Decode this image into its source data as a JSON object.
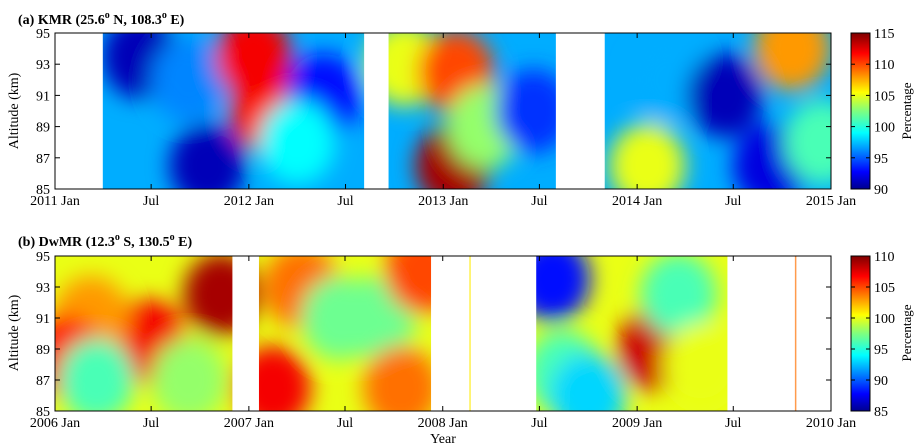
{
  "chart_data": [
    {
      "type": "heatmap",
      "panel_label": "(a)",
      "title": "(a) KMR (25.6",
      "title_sup": "o",
      "title_mid": " N, 108.3",
      "title_sup2": "o",
      "title_end": " E)",
      "xlabel": "",
      "ylabel": "Altitude (km)",
      "x_range": [
        "2011-01-01",
        "2015-01-01"
      ],
      "x_ticks": [
        {
          "date": "2011-01-01",
          "label": "2011 Jan"
        },
        {
          "date": "2011-07-01",
          "label": "Jul"
        },
        {
          "date": "2012-01-01",
          "label": "2012 Jan"
        },
        {
          "date": "2012-07-01",
          "label": "Jul"
        },
        {
          "date": "2013-01-01",
          "label": "2013 Jan"
        },
        {
          "date": "2013-07-01",
          "label": "Jul"
        },
        {
          "date": "2014-01-01",
          "label": "2014 Jan"
        },
        {
          "date": "2014-07-01",
          "label": "Jul"
        },
        {
          "date": "2015-01-01",
          "label": "2015 Jan"
        }
      ],
      "ylim": [
        85,
        95
      ],
      "y_ticks": [
        85,
        87,
        89,
        91,
        93,
        95
      ],
      "colorbar": {
        "label": "Percentage",
        "range": [
          90,
          115
        ],
        "ticks": [
          90,
          95,
          100,
          105,
          110,
          115
        ]
      },
      "data_gaps": [
        [
          "2011-01-01",
          "2011-04-01"
        ],
        [
          "2012-08-05",
          "2012-09-20"
        ],
        [
          "2013-08-01",
          "2013-11-01"
        ]
      ],
      "features": [
        {
          "date": "2011-06-10",
          "altitude": 93.5,
          "value": 91
        },
        {
          "date": "2011-10-15",
          "altitude": 86.5,
          "value": 91
        },
        {
          "date": "2011-09-10",
          "altitude": 92,
          "value": 96
        },
        {
          "date": "2012-02-05",
          "altitude": 90,
          "value": 111
        },
        {
          "date": "2012-01-10",
          "altitude": 93.5,
          "value": 112
        },
        {
          "date": "2012-05-20",
          "altitude": 91,
          "value": 93
        },
        {
          "date": "2012-04-01",
          "altitude": 88,
          "value": 99
        },
        {
          "date": "2012-10-20",
          "altitude": 93,
          "value": 105
        },
        {
          "date": "2013-01-25",
          "altitude": 92.5,
          "value": 110
        },
        {
          "date": "2013-01-20",
          "altitude": 86.5,
          "value": 114
        },
        {
          "date": "2013-03-20",
          "altitude": 89,
          "value": 103
        },
        {
          "date": "2013-06-20",
          "altitude": 90,
          "value": 94
        },
        {
          "date": "2014-01-20",
          "altitude": 86.5,
          "value": 105
        },
        {
          "date": "2014-03-01",
          "altitude": 92,
          "value": 97
        },
        {
          "date": "2014-06-15",
          "altitude": 91,
          "value": 91
        },
        {
          "date": "2014-09-10",
          "altitude": 86.5,
          "value": 92
        },
        {
          "date": "2014-10-20",
          "altitude": 94,
          "value": 108
        },
        {
          "date": "2014-12-15",
          "altitude": 88,
          "value": 101
        }
      ],
      "background_value": 97
    },
    {
      "type": "heatmap",
      "panel_label": "(b)",
      "title": "(b) DwMR (12.3",
      "title_sup": "o",
      "title_mid": " S, 130.5",
      "title_sup2": "o",
      "title_end": " E)",
      "xlabel": "Year",
      "ylabel": "Altitude (km)",
      "x_range": [
        "2006-01-01",
        "2010-01-01"
      ],
      "x_ticks": [
        {
          "date": "2006-01-01",
          "label": "2006 Jan"
        },
        {
          "date": "2006-07-01",
          "label": "Jul"
        },
        {
          "date": "2007-01-01",
          "label": "2007 Jan"
        },
        {
          "date": "2007-07-01",
          "label": "Jul"
        },
        {
          "date": "2008-01-01",
          "label": "2008 Jan"
        },
        {
          "date": "2008-07-01",
          "label": "Jul"
        },
        {
          "date": "2009-01-01",
          "label": "2009 Jan"
        },
        {
          "date": "2009-07-01",
          "label": "Jul"
        },
        {
          "date": "2010-01-01",
          "label": "2010 Jan"
        }
      ],
      "ylim": [
        85,
        95
      ],
      "y_ticks": [
        85,
        87,
        89,
        91,
        93,
        95
      ],
      "colorbar": {
        "label": "Percentage",
        "range": [
          85,
          110
        ],
        "ticks": [
          85,
          90,
          95,
          100,
          105,
          110
        ]
      },
      "data_gaps": [
        [
          "2006-12-01",
          "2007-01-20"
        ],
        [
          "2007-12-10",
          "2008-06-25"
        ],
        [
          "2009-06-20",
          "2010-01-01"
        ]
      ],
      "thin_lines": [
        {
          "date": "2008-02-20",
          "value": 101
        },
        {
          "date": "2009-10-25",
          "value": 104
        }
      ],
      "features": [
        {
          "date": "2006-06-25",
          "altitude": 89.5,
          "value": 107
        },
        {
          "date": "2006-03-10",
          "altitude": 91,
          "value": 103
        },
        {
          "date": "2006-01-20",
          "altitude": 88.5,
          "value": 106
        },
        {
          "date": "2006-11-10",
          "altitude": 92.5,
          "value": 109
        },
        {
          "date": "2006-03-20",
          "altitude": 87,
          "value": 96
        },
        {
          "date": "2006-09-10",
          "altitude": 87,
          "value": 98
        },
        {
          "date": "2007-02-15",
          "altitude": 86.5,
          "value": 107
        },
        {
          "date": "2007-04-10",
          "altitude": 93,
          "value": 104
        },
        {
          "date": "2007-06-20",
          "altitude": 91,
          "value": 97
        },
        {
          "date": "2007-09-01",
          "altitude": 91,
          "value": 97
        },
        {
          "date": "2007-10-15",
          "altitude": 86.5,
          "value": 104
        },
        {
          "date": "2007-11-25",
          "altitude": 94,
          "value": 105
        },
        {
          "date": "2008-07-25",
          "altitude": 93.5,
          "value": 88
        },
        {
          "date": "2008-08-15",
          "altitude": 87.5,
          "value": 96
        },
        {
          "date": "2008-10-01",
          "altitude": 86,
          "value": 93
        },
        {
          "date": "2009-02-05",
          "altitude": 89,
          "value": 108
        },
        {
          "date": "2009-03-20",
          "altitude": 92.5,
          "value": 96
        },
        {
          "date": "2009-05-01",
          "altitude": 88,
          "value": 100
        }
      ],
      "background_value": 100
    }
  ]
}
